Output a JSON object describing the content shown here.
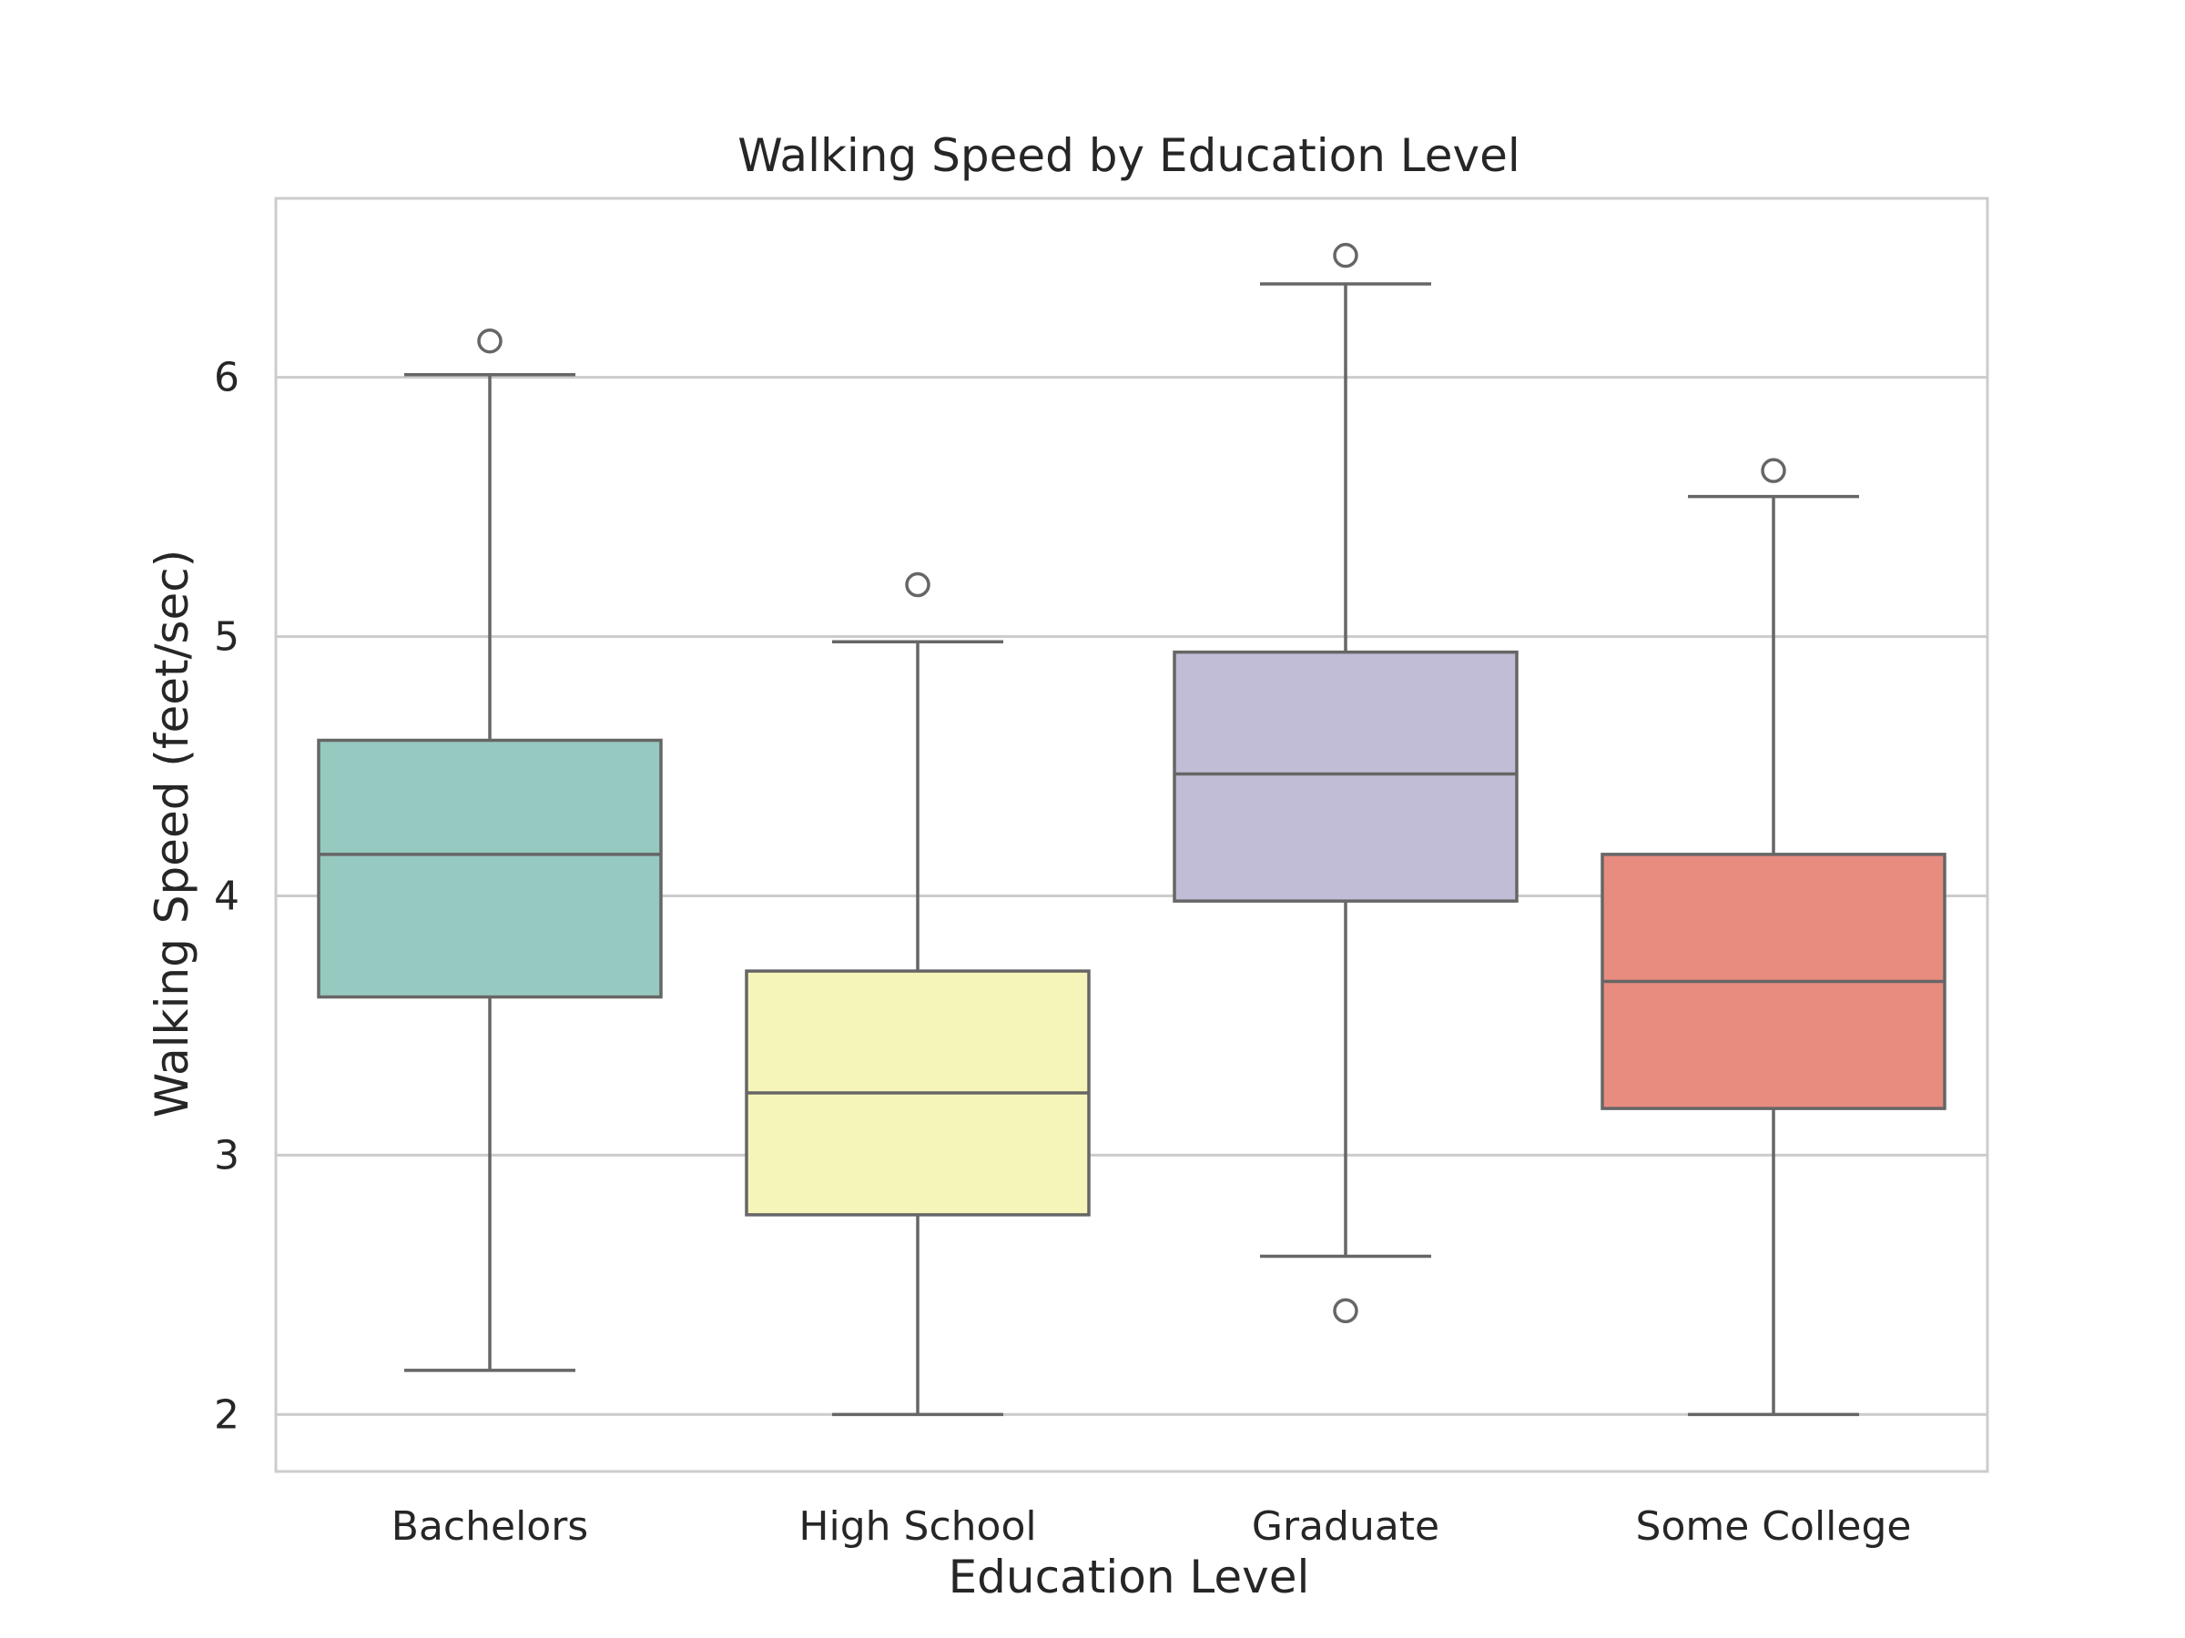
{
  "chart_data": {
    "type": "box",
    "title": "Walking Speed by Education Level",
    "xlabel": "Education Level",
    "ylabel": "Walking Speed (feet/sec)",
    "ylim": [
      1.78,
      6.69
    ],
    "yticks": [
      2,
      3,
      4,
      5,
      6
    ],
    "grid": "horizontal",
    "categories": [
      "Bachelors",
      "High School",
      "Graduate",
      "Some College"
    ],
    "colors": [
      "#96c9c0",
      "#f6f5b9",
      "#c1bdd6",
      "#e98c80"
    ],
    "edge_color": "#666666",
    "series": [
      {
        "whisker_low": 2.17,
        "q1": 3.61,
        "median": 4.16,
        "q3": 4.6,
        "whisker_high": 6.01,
        "outliers": [
          6.14
        ]
      },
      {
        "whisker_low": 2.0,
        "q1": 2.77,
        "median": 3.24,
        "q3": 3.71,
        "whisker_high": 4.98,
        "outliers": [
          5.2
        ]
      },
      {
        "whisker_low": 2.61,
        "q1": 3.98,
        "median": 4.47,
        "q3": 4.94,
        "whisker_high": 6.36,
        "outliers": [
          6.47,
          2.4
        ]
      },
      {
        "whisker_low": 2.0,
        "q1": 3.18,
        "median": 3.67,
        "q3": 4.16,
        "whisker_high": 5.54,
        "outliers": [
          5.64
        ]
      }
    ]
  }
}
